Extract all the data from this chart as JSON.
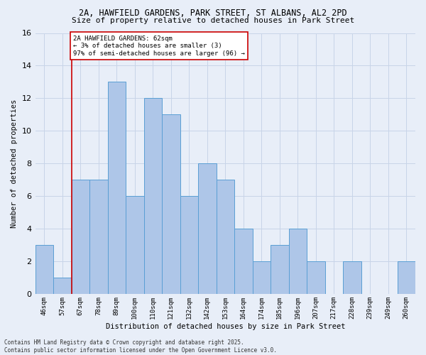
{
  "title_line1": "2A, HAWFIELD GARDENS, PARK STREET, ST ALBANS, AL2 2PD",
  "title_line2": "Size of property relative to detached houses in Park Street",
  "xlabel": "Distribution of detached houses by size in Park Street",
  "ylabel": "Number of detached properties",
  "bar_labels": [
    "46sqm",
    "57sqm",
    "67sqm",
    "78sqm",
    "89sqm",
    "100sqm",
    "110sqm",
    "121sqm",
    "132sqm",
    "142sqm",
    "153sqm",
    "164sqm",
    "174sqm",
    "185sqm",
    "196sqm",
    "207sqm",
    "217sqm",
    "228sqm",
    "239sqm",
    "249sqm",
    "260sqm"
  ],
  "bar_values": [
    3,
    1,
    7,
    7,
    13,
    6,
    12,
    11,
    6,
    8,
    7,
    4,
    2,
    3,
    4,
    2,
    0,
    2,
    0,
    0,
    2
  ],
  "bar_color": "#aec6e8",
  "bar_edge_color": "#5a9fd4",
  "grid_color": "#c8d4e8",
  "background_color": "#e8eef8",
  "annotation_text": "2A HAWFIELD GARDENS: 62sqm\n← 3% of detached houses are smaller (3)\n97% of semi-detached houses are larger (96) →",
  "annotation_box_color": "#ffffff",
  "annotation_box_edge": "#cc0000",
  "annotation_text_color": "#000000",
  "vline_bin_index": 1,
  "vline_color": "#cc0000",
  "ylim": [
    0,
    16
  ],
  "yticks": [
    0,
    2,
    4,
    6,
    8,
    10,
    12,
    14,
    16
  ],
  "footer_line1": "Contains HM Land Registry data © Crown copyright and database right 2025.",
  "footer_line2": "Contains public sector information licensed under the Open Government Licence v3.0."
}
